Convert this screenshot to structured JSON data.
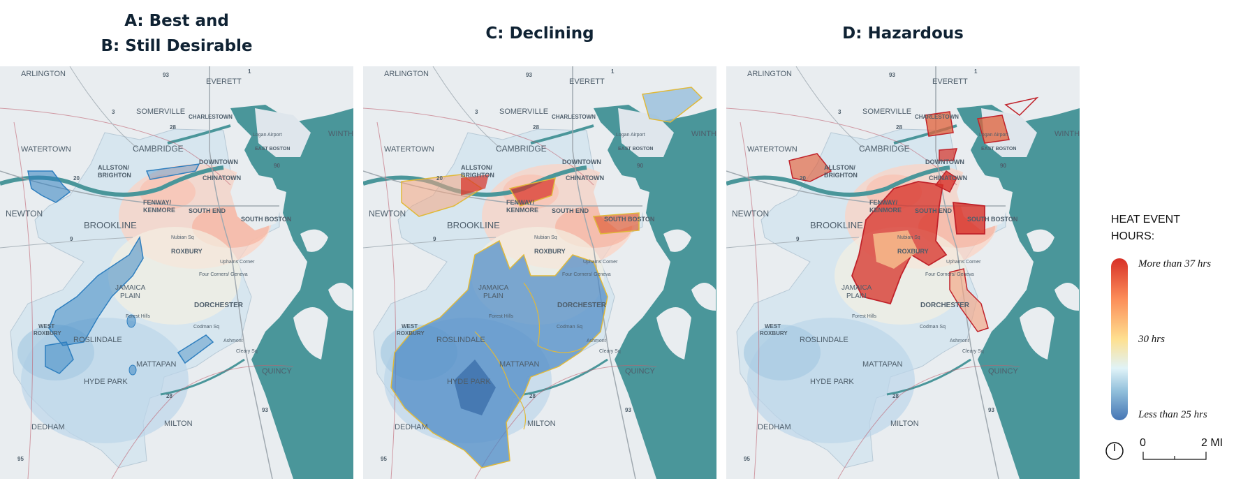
{
  "panels": [
    {
      "title_lines": [
        "A: Best and",
        "B: Still Desirable"
      ]
    },
    {
      "title_lines": [
        "C: Declining"
      ]
    },
    {
      "title_lines": [
        "D: Hazardous"
      ]
    }
  ],
  "map_labels": {
    "arlington": "ARLINGTON",
    "everett": "EVERETT",
    "somerville": "SOMERVILLE",
    "charlestown": "CHARLESTOWN",
    "watertown": "WATERTOWN",
    "cambridge": "CAMBRIDGE",
    "east_boston": "EAST BOSTON",
    "winthrop": "WINTH",
    "allston": "ALLSTON/",
    "brighton": "BRIGHTON",
    "downtown": "DOWNTOWN",
    "chinatown": "CHINATOWN",
    "newton": "NEWTON",
    "fenway": "FENWAY/",
    "kenmore": "KENMORE",
    "south_end": "SOUTH END",
    "south_boston": "SOUTH BOSTON",
    "brookline": "BROOKLINE",
    "roxbury": "ROXBURY",
    "jamaica": "JAMAICA",
    "plain": "PLAIN",
    "dorchester": "DORCHESTER",
    "west": "WEST",
    "roxbury2": "ROXBURY",
    "roslindale": "ROSLINDALE",
    "mattapan": "MATTAPAN",
    "hyde_park": "HYDE PARK",
    "quincy": "QUINCY",
    "dedham": "DEDHAM",
    "milton": "MILTON",
    "logan": "Logan Airport",
    "nubian": "Nubian Sq",
    "uphams": "Uphams Corner",
    "four_corners": "Four Corners/ Geneva",
    "forest_hills": "Forest Hills",
    "codman": "Codman Sq",
    "ashmont": "Ashmont",
    "cleary": "Cleary Sq",
    "rt_93": "93",
    "rt_90": "90",
    "rt_1": "1",
    "rt_28": "28",
    "rt_3": "3",
    "rt_20": "20",
    "rt_9": "9",
    "rt_95": "95"
  },
  "legend": {
    "title_line1": "HEAT EVENT",
    "title_line2": "HOURS:",
    "high_label": "More than 37 hrs",
    "mid_label": "30 hrs",
    "low_label": "Less than 25 hrs",
    "high_color": "#d73027",
    "low_color": "#4575b4"
  },
  "scale": {
    "start": "0",
    "end": "2 MI"
  },
  "colors": {
    "water": "#4a969a",
    "land": "#e9edf0",
    "outline_a": "#2f7fbf",
    "outline_c": "#e0b93a",
    "outline_d": "#c0222a"
  }
}
